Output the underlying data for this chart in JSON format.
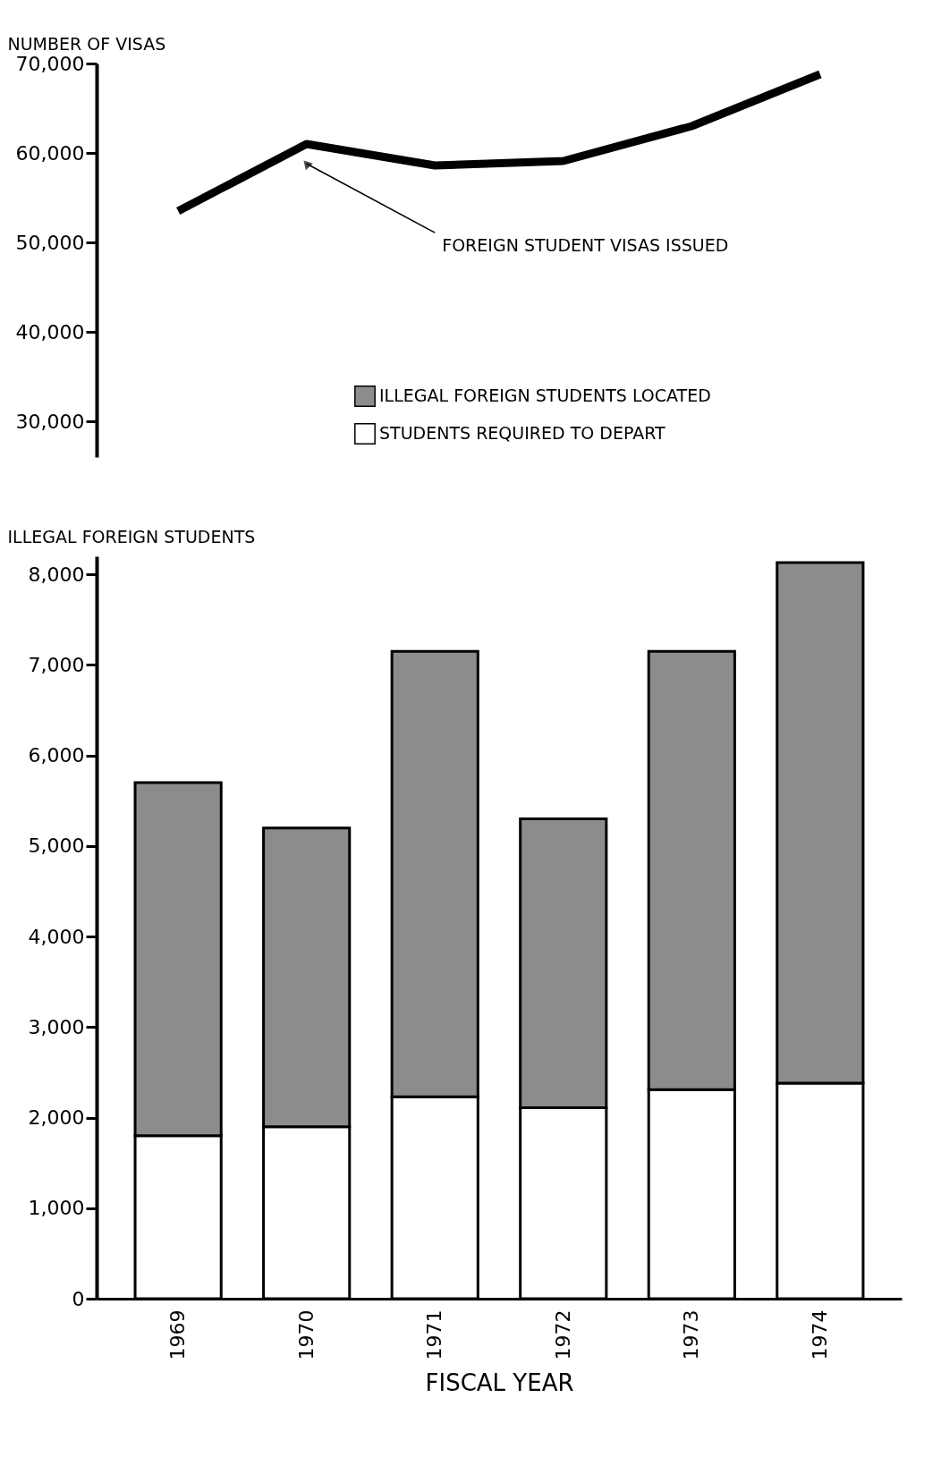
{
  "chart_data": [
    {
      "type": "line",
      "categories": [
        "1969",
        "1970",
        "1971",
        "1972",
        "1973",
        "1974"
      ],
      "series": [
        {
          "name": "FOREIGN STUDENT VISAS ISSUED",
          "color": "#000000",
          "values": [
            53500,
            61000,
            58600,
            59100,
            63000,
            68800
          ]
        }
      ],
      "ylabel": "NUMBER OF VISAS",
      "ylim": [
        26000,
        70000
      ],
      "yticks": [
        {
          "value": 30000,
          "label": "30,000"
        },
        {
          "value": 40000,
          "label": "40,000"
        },
        {
          "value": 50000,
          "label": "50,000"
        },
        {
          "value": 60000,
          "label": "60,000"
        },
        {
          "value": 70000,
          "label": "70,000"
        }
      ],
      "tick_labels": "y",
      "marker": "none",
      "grid": false
    },
    {
      "type": "bar",
      "stacked": true,
      "categories": [
        "1969",
        "1970",
        "1971",
        "1972",
        "1973",
        "1974"
      ],
      "series": [
        {
          "name": "STUDENTS REQUIRED TO DEPART",
          "color": "#ffffff",
          "values": [
            1800,
            1900,
            2230,
            2110,
            2310,
            2380
          ]
        },
        {
          "name": "ILLEGAL FOREIGN STUDENTS LOCATED",
          "color": "#8c8c8c",
          "values": [
            3900,
            3300,
            4920,
            3190,
            4840,
            5750
          ]
        }
      ],
      "xlabel": "FISCAL YEAR",
      "ylabel": "ILLEGAL FOREIGN STUDENTS",
      "ylim": [
        0,
        8200
      ],
      "yticks": [
        0,
        {
          "value": 1000,
          "label": "1,000"
        },
        {
          "value": 2000,
          "label": "2,000"
        },
        {
          "value": 3000,
          "label": "3,000"
        },
        {
          "value": 4000,
          "label": "4,000"
        },
        {
          "value": 5000,
          "label": "5,000"
        },
        {
          "value": 6000,
          "label": "6,000"
        },
        {
          "value": 7000,
          "label": "7,000"
        },
        {
          "value": 8000,
          "label": "8,000"
        }
      ],
      "grid": false,
      "legend": "top right"
    }
  ]
}
